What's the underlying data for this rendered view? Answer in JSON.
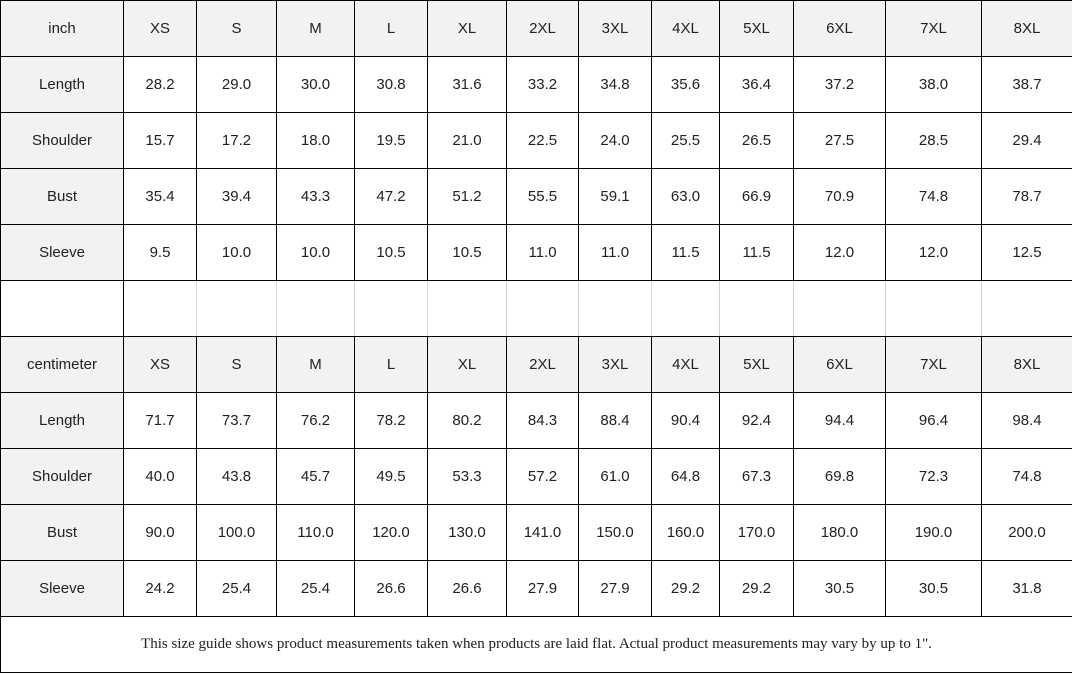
{
  "chart_data": [
    {
      "type": "table",
      "unit": "inch",
      "header": [
        "inch",
        "XS",
        "S",
        "M",
        "L",
        "XL",
        "2XL",
        "3XL",
        "4XL",
        "5XL",
        "6XL",
        "7XL",
        "8XL"
      ],
      "rows": [
        {
          "label": "Length",
          "values": [
            "28.2",
            "29.0",
            "30.0",
            "30.8",
            "31.6",
            "33.2",
            "34.8",
            "35.6",
            "36.4",
            "37.2",
            "38.0",
            "38.7"
          ]
        },
        {
          "label": "Shoulder",
          "values": [
            "15.7",
            "17.2",
            "18.0",
            "19.5",
            "21.0",
            "22.5",
            "24.0",
            "25.5",
            "26.5",
            "27.5",
            "28.5",
            "29.4"
          ]
        },
        {
          "label": "Bust",
          "values": [
            "35.4",
            "39.4",
            "43.3",
            "47.2",
            "51.2",
            "55.5",
            "59.1",
            "63.0",
            "66.9",
            "70.9",
            "74.8",
            "78.7"
          ]
        },
        {
          "label": "Sleeve",
          "values": [
            "9.5",
            "10.0",
            "10.0",
            "10.5",
            "10.5",
            "11.0",
            "11.0",
            "11.5",
            "11.5",
            "12.0",
            "12.0",
            "12.5"
          ]
        }
      ]
    },
    {
      "type": "table",
      "unit": "centimeter",
      "header": [
        "centimeter",
        "XS",
        "S",
        "M",
        "L",
        "XL",
        "2XL",
        "3XL",
        "4XL",
        "5XL",
        "6XL",
        "7XL",
        "8XL"
      ],
      "rows": [
        {
          "label": "Length",
          "values": [
            "71.7",
            "73.7",
            "76.2",
            "78.2",
            "80.2",
            "84.3",
            "88.4",
            "90.4",
            "92.4",
            "94.4",
            "96.4",
            "98.4"
          ]
        },
        {
          "label": "Shoulder",
          "values": [
            "40.0",
            "43.8",
            "45.7",
            "49.5",
            "53.3",
            "57.2",
            "61.0",
            "64.8",
            "67.3",
            "69.8",
            "72.3",
            "74.8"
          ]
        },
        {
          "label": "Bust",
          "values": [
            "90.0",
            "100.0",
            "110.0",
            "120.0",
            "130.0",
            "141.0",
            "150.0",
            "160.0",
            "170.0",
            "180.0",
            "190.0",
            "200.0"
          ]
        },
        {
          "label": "Sleeve",
          "values": [
            "24.2",
            "25.4",
            "25.4",
            "26.6",
            "26.6",
            "27.9",
            "27.9",
            "29.2",
            "29.2",
            "30.5",
            "30.5",
            "31.8"
          ]
        }
      ]
    }
  ],
  "footer": {
    "note": "This size guide shows product measurements taken when products are laid flat. Actual product measurements may vary by up to 1\"."
  },
  "colors": {
    "header_bg": "#f2f2f2",
    "cell_border": "#000000",
    "spacer_line": "#ccd3dc",
    "footer_line": "#cdd5de"
  }
}
